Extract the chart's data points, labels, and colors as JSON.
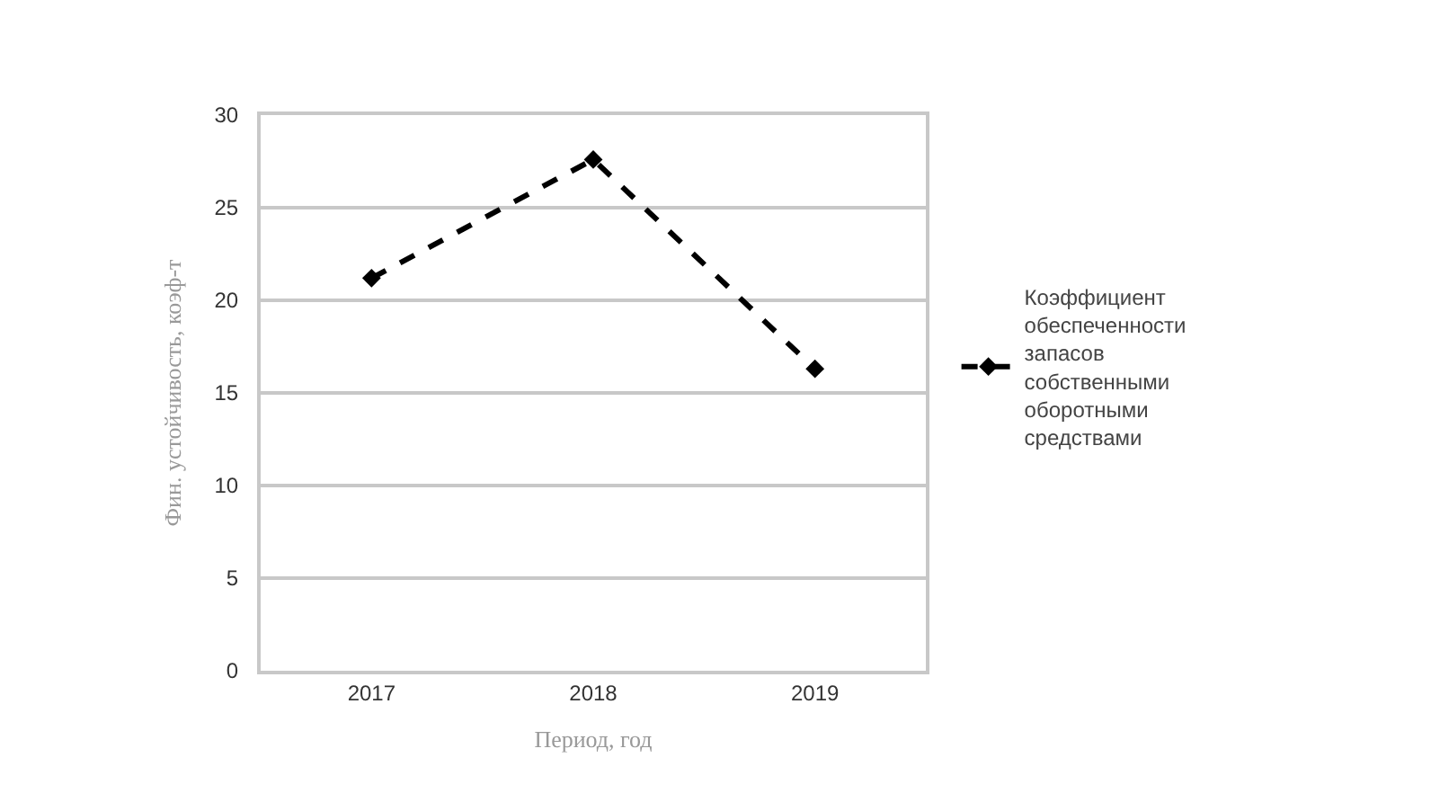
{
  "chart_data": {
    "type": "line",
    "xlabel": "Период, год",
    "ylabel": "Фин. устойчивость, коэф-т",
    "categories": [
      "2017",
      "2018",
      "2019"
    ],
    "series": [
      {
        "name": "Коэффициент обеспеченности запасов собственными оборотными средствами",
        "color": "#000000",
        "values": [
          21.2,
          27.6,
          16.3
        ]
      }
    ],
    "ylim": [
      0,
      30
    ],
    "yticks": [
      0,
      5,
      10,
      15,
      20,
      25,
      30
    ],
    "grid": "y",
    "legend": "right",
    "marker": "diamond",
    "line_style": "dashed"
  }
}
